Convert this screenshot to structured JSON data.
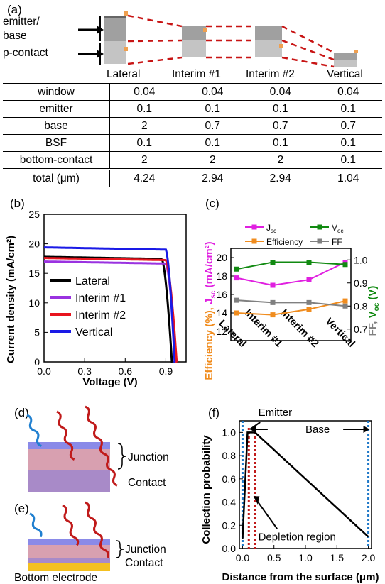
{
  "panels": {
    "a": "(a)",
    "b": "(b)",
    "c": "(c)",
    "d": "(d)",
    "e": "(e)",
    "f": "(f)"
  },
  "panel_a": {
    "left_labels": [
      "emitter/",
      "base",
      "p-contact"
    ],
    "structures": [
      "Lateral",
      "Interim #1",
      "Interim #2",
      "Vertical"
    ]
  },
  "table": {
    "rows": [
      {
        "label": "window",
        "values": [
          "0.04",
          "0.04",
          "0.04",
          "0.04"
        ]
      },
      {
        "label": "emitter",
        "values": [
          "0.1",
          "0.1",
          "0.1",
          "0.1"
        ]
      },
      {
        "label": "base",
        "values": [
          "2",
          "0.7",
          "0.7",
          "0.7"
        ]
      },
      {
        "label": "BSF",
        "values": [
          "0.1",
          "0.1",
          "0.1",
          "0.1"
        ]
      },
      {
        "label": "bottom-contact",
        "values": [
          "2",
          "2",
          "2",
          "0.1"
        ]
      },
      {
        "label": "total (μm)",
        "values": [
          "4.24",
          "2.94",
          "2.94",
          "1.04"
        ]
      }
    ]
  },
  "panel_d": {
    "labels": [
      "Junction",
      "Contact"
    ]
  },
  "panel_e": {
    "labels": [
      "Junction",
      "Contact",
      "Bottom electrode"
    ]
  },
  "colors": {
    "lateral": "#000000",
    "interim1": "#9a32e0",
    "interim2": "#e8141e",
    "vertical": "#1a1ae6",
    "jsc": "#e020e0",
    "voc": "#118a11",
    "eff": "#f08c1e",
    "ff": "#808080",
    "dotted_blue": "#1e78c8",
    "dotted_red": "#c01a1a"
  },
  "chart_data": [
    {
      "type": "line",
      "panel": "b",
      "xlabel": "Voltage (V)",
      "ylabel": "Current density (mA/cm²)",
      "xlim": [
        0,
        1.05
      ],
      "ylim": [
        0,
        25
      ],
      "xticks": [
        "0.0",
        "0.3",
        "0.6",
        "0.9"
      ],
      "yticks": [
        "0",
        "5",
        "10",
        "15",
        "20",
        "25"
      ],
      "legend": "bottom-left",
      "series": [
        {
          "name": "Lateral",
          "jsc": 17.8,
          "voc": 0.945,
          "knee": 0.87
        },
        {
          "name": "Interim #1",
          "jsc": 17.0,
          "voc": 0.975,
          "knee": 0.9
        },
        {
          "name": "Interim #2",
          "jsc": 17.6,
          "voc": 0.98,
          "knee": 0.9
        },
        {
          "name": "Vertical",
          "jsc": 19.4,
          "voc": 0.965,
          "knee": 0.9
        }
      ]
    },
    {
      "type": "line",
      "panel": "c",
      "categories": [
        "Lateral",
        "Interim #1",
        "Interim #2",
        "Vertical"
      ],
      "left_ylabel_parts": [
        "Efficiency (%), ",
        "J",
        "sc",
        " (mA/cm²)"
      ],
      "right_ylabel_parts": [
        "FF, ",
        "V",
        "oc",
        " (V)"
      ],
      "left_ylim": [
        11,
        21
      ],
      "right_ylim": [
        0.65,
        1.05
      ],
      "left_yticks": [
        "12",
        "14",
        "16",
        "18",
        "20"
      ],
      "right_yticks": [
        "0.7",
        "0.8",
        "0.9",
        "1.0"
      ],
      "legend": "top",
      "series": [
        {
          "name": "J",
          "sub": "sc",
          "axis": "left",
          "values": [
            17.8,
            17.0,
            17.6,
            19.5
          ]
        },
        {
          "name": "V",
          "sub": "oc",
          "axis": "right",
          "values": [
            0.96,
            0.99,
            0.99,
            0.98
          ]
        },
        {
          "name": "Efficiency",
          "axis": "left",
          "values": [
            14.0,
            13.8,
            14.4,
            15.3
          ]
        },
        {
          "name": "FF",
          "axis": "right",
          "values": [
            0.825,
            0.815,
            0.815,
            0.8
          ]
        }
      ]
    },
    {
      "type": "line",
      "panel": "f",
      "xlabel": "Distance from the surface (μm)",
      "ylabel": "Collection probability",
      "xlim": [
        -0.05,
        2.05
      ],
      "ylim": [
        0,
        1.1
      ],
      "xticks": [
        "0.0",
        "0.5",
        "1.0",
        "1.5",
        "2.0"
      ],
      "yticks": [
        "0.0",
        "0.2",
        "0.4",
        "0.6",
        "0.8",
        "1.0"
      ],
      "annotations": [
        "Emitter",
        "Base",
        "Depletion region"
      ],
      "series": [
        {
          "name": "",
          "x": [
            0,
            0.08,
            0.2,
            2.0
          ],
          "y": [
            0.08,
            1.0,
            1.0,
            0.1
          ]
        }
      ]
    }
  ]
}
